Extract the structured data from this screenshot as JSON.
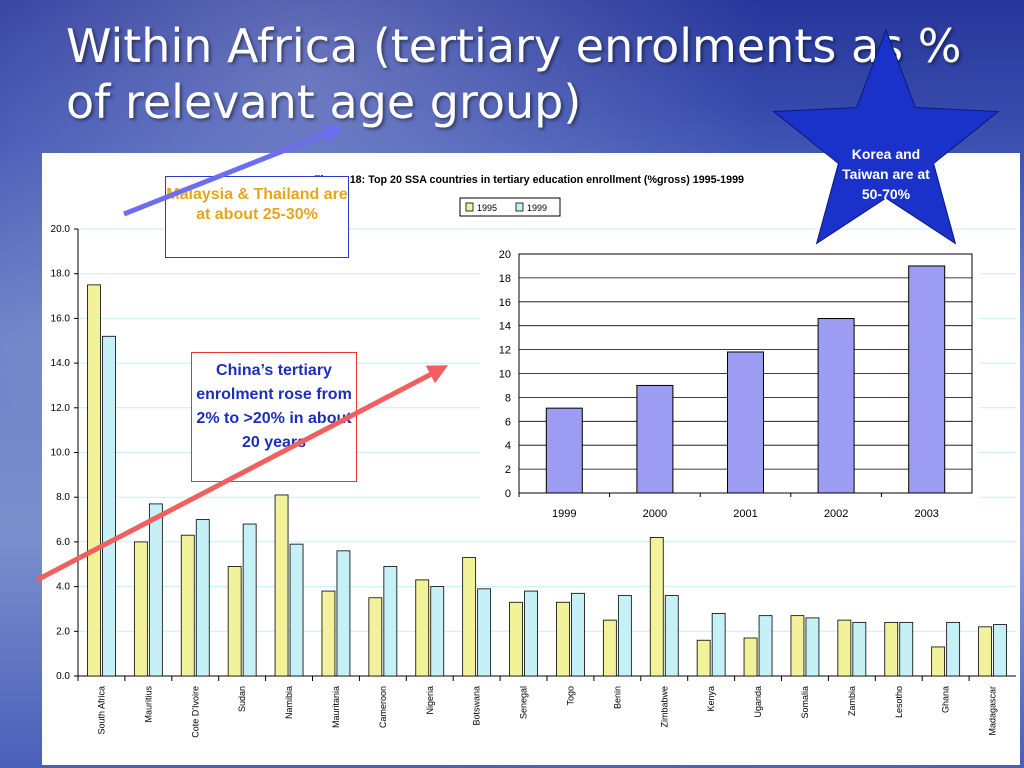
{
  "slide": {
    "title": "Within Africa (tertiary enrolments as % of relevant age group)"
  },
  "callouts": {
    "malaysia": "Malaysia & Thailand are at about 25-30%",
    "china": "China’s tertiary enrolment rose from 2% to >20% in about 20 years",
    "korea": "Korea and Taiwan are at 50-70%"
  },
  "colors": {
    "bar_1995": "#f2f29a",
    "bar_1999": "#c4f0f6",
    "inset_bar": "#9c9cf2",
    "star": "#1a32c9",
    "malaysia_text": "#e7a61a",
    "china_text": "#1d2fb8",
    "arrow_blue": "#6d6df0",
    "arrow_red": "#f06060"
  },
  "chart_data": [
    {
      "type": "bar",
      "title": "Figure 18: Top 20 SSA countries in tertiary education enrollment  (%gross) 1995-1999",
      "categories": [
        "South Africa",
        "Mauritius",
        "Cote D'Ivoire",
        "Sudan",
        "Namibia",
        "Mauritania",
        "Cameroon",
        "Nigeria",
        "Botswana",
        "Senegal",
        "Togo",
        "Benin",
        "Zimbabwe",
        "Kenya",
        "Uganda",
        "Somalia",
        "Zambia",
        "Lesotho",
        "Ghana",
        "Madagascar"
      ],
      "series": [
        {
          "name": "1995",
          "values": [
            17.5,
            6.0,
            6.3,
            4.9,
            8.1,
            3.8,
            3.5,
            4.3,
            5.3,
            3.3,
            3.3,
            2.5,
            6.2,
            1.6,
            1.7,
            2.7,
            2.5,
            2.4,
            1.3,
            2.2
          ]
        },
        {
          "name": "1999",
          "values": [
            15.2,
            7.7,
            7.0,
            6.8,
            5.9,
            5.6,
            4.9,
            4.0,
            3.9,
            3.8,
            3.7,
            3.6,
            3.6,
            2.8,
            2.7,
            2.6,
            2.4,
            2.4,
            2.4,
            2.3
          ]
        }
      ],
      "ylim": [
        0,
        20
      ],
      "yticks": [
        "0.0",
        "2.0",
        "4.0",
        "6.0",
        "8.0",
        "10.0",
        "12.0",
        "14.0",
        "16.0",
        "18.0",
        "20.0"
      ],
      "grid": true,
      "legend": "top-center"
    },
    {
      "type": "bar",
      "categories": [
        "1999",
        "2000",
        "2001",
        "2002",
        "2003"
      ],
      "values": [
        7.1,
        9.0,
        11.8,
        14.6,
        19.0
      ],
      "ylim": [
        0,
        20
      ],
      "yticks": [
        "0",
        "2",
        "4",
        "6",
        "8",
        "10",
        "12",
        "14",
        "16",
        "18",
        "20"
      ],
      "grid": true
    }
  ]
}
